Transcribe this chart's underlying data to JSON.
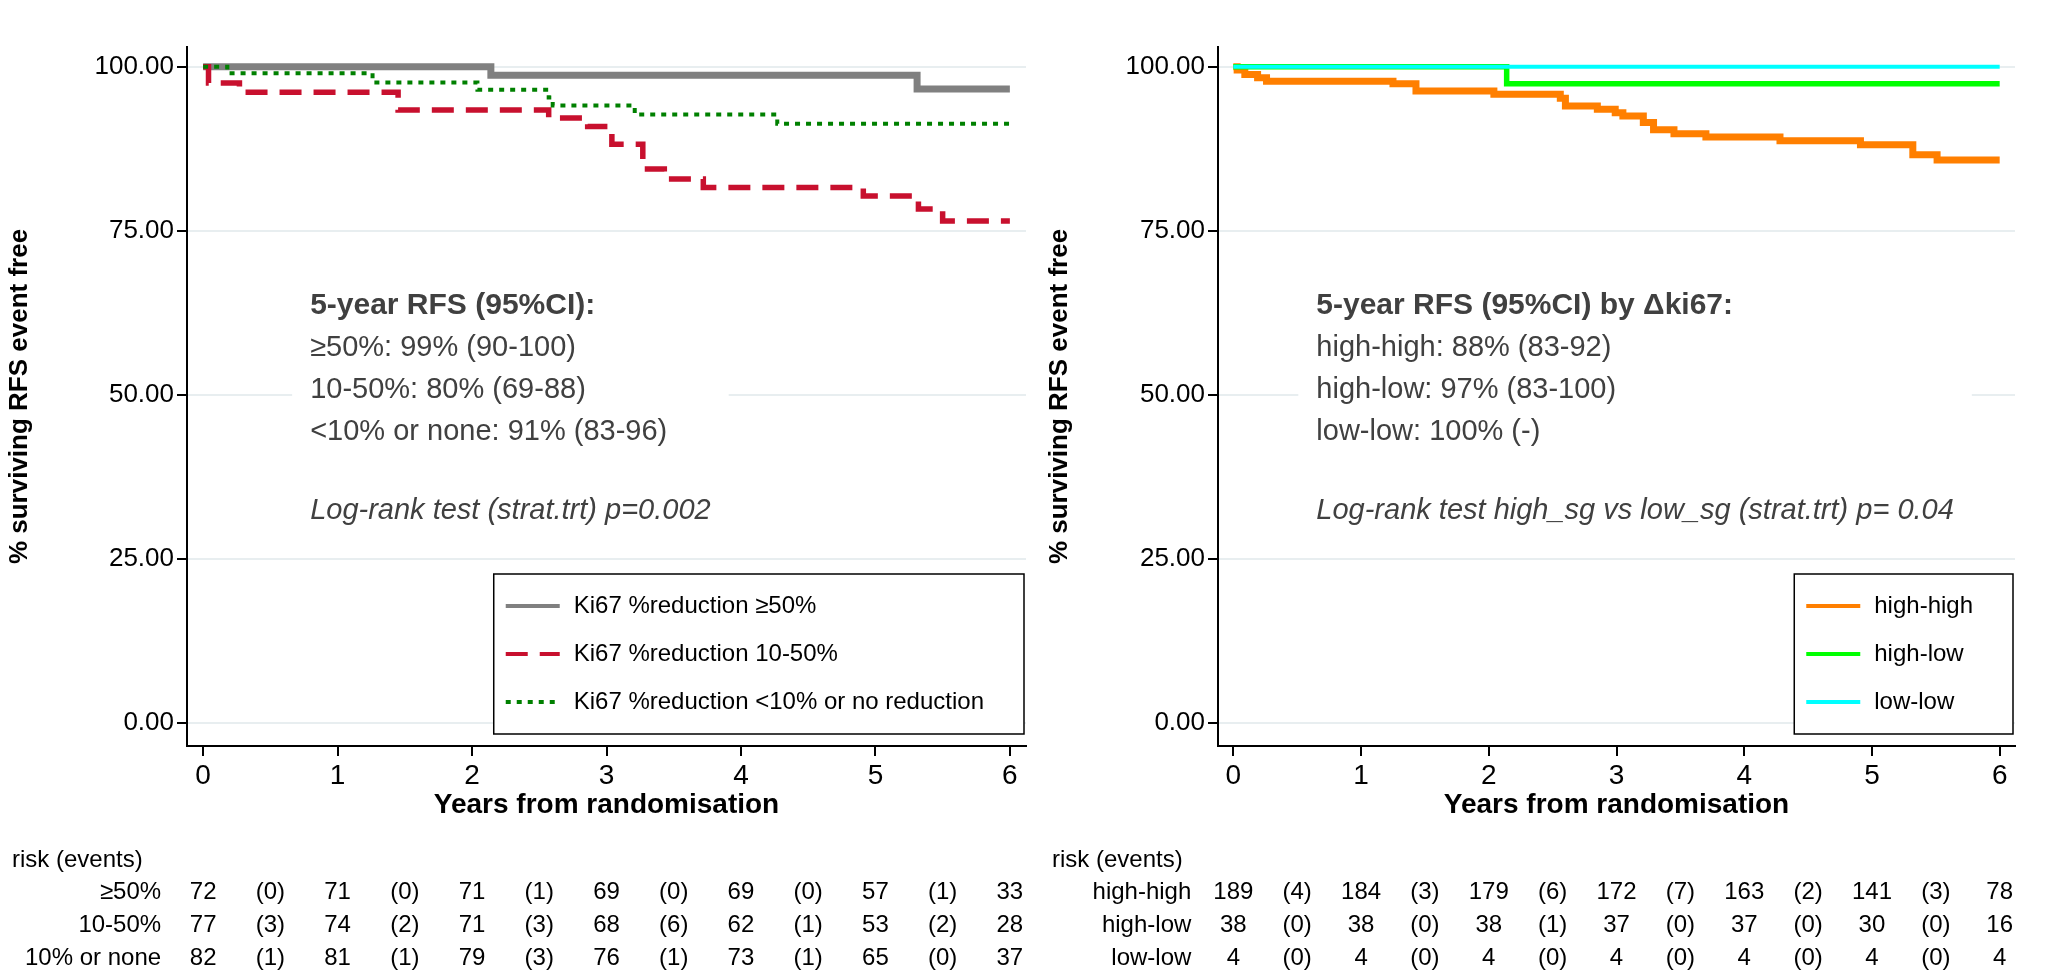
{
  "chart_data": [
    {
      "type": "step",
      "xlabel": "Years from randomisation",
      "ylabel": "% surviving RFS event free",
      "xlim": [
        -0.12,
        6.12
      ],
      "xticks": [
        0,
        1,
        2,
        3,
        4,
        5,
        6
      ],
      "ylim": [
        -3.5,
        103
      ],
      "yticks": [
        {
          "value": 0,
          "label": "0.00"
        },
        {
          "value": 25,
          "label": "25.00"
        },
        {
          "value": 50,
          "label": "50.00"
        },
        {
          "value": 75,
          "label": "75.00"
        },
        {
          "value": 100,
          "label": "100.00"
        }
      ],
      "grid": "y",
      "legend": "bottom right",
      "series": [
        {
          "name": "Ki67 %reduction ≥50%",
          "color": "#808080",
          "line_style": "solid",
          "x": [
            0,
            2.14,
            5.31,
            6
          ],
          "values": [
            100,
            98.7,
            96.6,
            96.6
          ]
        },
        {
          "name": "Ki67 %reduction 10-50%",
          "color": "#c8102e",
          "line_style": "dashed",
          "x": [
            0,
            0.04,
            0.27,
            1.45,
            2.57,
            2.86,
            3.04,
            3.27,
            3.43,
            3.72,
            4.91,
            5.32,
            5.5,
            6
          ],
          "values": [
            100,
            97.5,
            96.1,
            93.4,
            92.2,
            90.9,
            88.2,
            84.4,
            82.9,
            81.6,
            80.3,
            78.3,
            76.5,
            76.5
          ]
        },
        {
          "name": "Ki67 %reduction <10% or no reduction",
          "color": "#008000",
          "line_style": "dotted",
          "x": [
            0,
            0.18,
            1.26,
            2.04,
            2.57,
            2.6,
            3.21,
            4.27,
            6
          ],
          "values": [
            100,
            99,
            97.6,
            96.5,
            95.3,
            94.1,
            92.7,
            91.3,
            91.3
          ]
        }
      ],
      "annotations": [
        "5-year RFS (95%CI):",
        "≥50%: 99% (90-100)",
        "10-50%: 80% (69-88)",
        "<10% or none: 91% (83-96)",
        "Log-rank test (strat.trt) p=0.002",
        "risk (events)",
        "≥50% 72 (0) 71 (0) 71 (1) 69 (0) 69 (0) 57 (1) 33",
        "10-50% 77 (3) 74 (2) 71 (3) 68 (6) 62 (1) 53 (2) 28",
        "10% or none 82 (1) 81 (1) 79 (3) 76 (1) 73 (1) 65 (0) 37"
      ]
    },
    {
      "type": "step",
      "xlabel": "Years from randomisation",
      "ylabel": "% surviving RFS event free",
      "xlim": [
        -0.12,
        6.12
      ],
      "xticks": [
        0,
        1,
        2,
        3,
        4,
        5,
        6
      ],
      "ylim": [
        -3.5,
        103
      ],
      "yticks": [
        {
          "value": 0,
          "label": "0.00"
        },
        {
          "value": 25,
          "label": "25.00"
        },
        {
          "value": 50,
          "label": "50.00"
        },
        {
          "value": 75,
          "label": "75.00"
        },
        {
          "value": 100,
          "label": "100.00"
        }
      ],
      "grid": "y",
      "legend": "bottom right",
      "series": [
        {
          "name": "high-high",
          "color": "#ff7f00",
          "line_style": "solid",
          "x": [
            0,
            0.03,
            0.09,
            0.19,
            0.26,
            1.25,
            1.43,
            2.04,
            2.56,
            2.6,
            2.85,
            2.99,
            3.05,
            3.21,
            3.29,
            3.45,
            3.7,
            4.28,
            4.91,
            5.32,
            5.51,
            6
          ],
          "values": [
            100,
            99.5,
            98.8,
            98.3,
            97.8,
            97.4,
            96.3,
            95.8,
            95.2,
            94,
            93.5,
            93,
            92.5,
            91.5,
            90.4,
            89.8,
            89.3,
            88.7,
            88.1,
            86.6,
            85.8,
            85.8
          ]
        },
        {
          "name": "high-low",
          "color": "#00ff00",
          "line_style": "solid",
          "x": [
            0,
            2.14,
            6
          ],
          "values": [
            100,
            97.4,
            97.4
          ]
        },
        {
          "name": "low-low",
          "color": "#00ffff",
          "line_style": "solid",
          "x": [
            0,
            6
          ],
          "values": [
            100,
            100
          ]
        }
      ],
      "annotations": [
        "5-year RFS (95%CI) by Δki67:",
        "high-high: 88% (83-92)",
        "high-low: 97% (83-100)",
        "low-low: 100% (-)",
        "Log-rank test high_sg vs low_sg (strat.trt) p= 0.04",
        "risk (events)",
        "high-high 189 (4) 184 (3) 179 (6) 172 (7) 163 (2) 141 (3) 78",
        "high-low 38 (0) 38 (0) 38 (1) 37 (0) 37 (0) 30 (0) 16",
        "low-low 4 (0) 4 (0) 4 (0) 4 (0) 4 (0) 4 (0) 4"
      ]
    }
  ]
}
